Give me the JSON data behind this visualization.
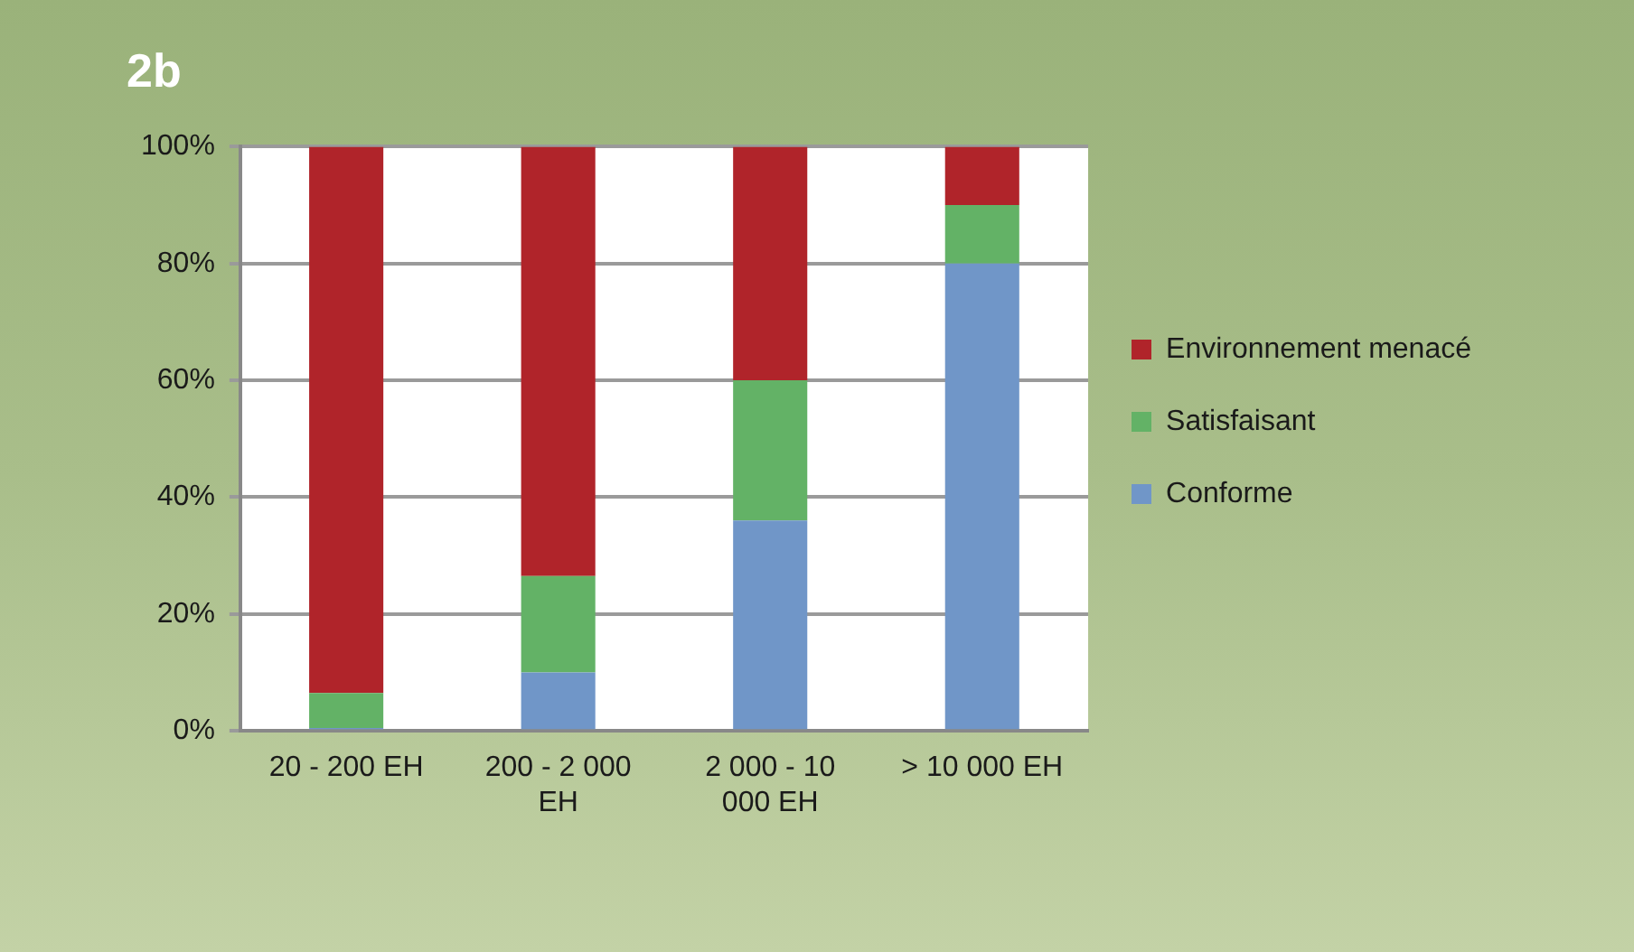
{
  "chart_data": {
    "type": "bar",
    "title": "2b",
    "stacked": true,
    "categories": [
      "20 - 200 EH",
      "200 - 2 000 EH",
      "2 000 - 10 000 EH",
      "> 10 000 EH"
    ],
    "series": [
      {
        "name": "Conforme",
        "color": "#7096c8",
        "values": [
          0.5,
          10,
          36,
          80
        ]
      },
      {
        "name": "Satisfaisant",
        "color": "#63b266",
        "values": [
          6,
          16.5,
          24,
          10
        ]
      },
      {
        "name": "Environnement menacé",
        "color": "#b0242a",
        "values": [
          93.5,
          73.5,
          40,
          10
        ]
      }
    ],
    "ylim": [
      0,
      100
    ],
    "yticks": [
      {
        "value": 0,
        "label": "0%"
      },
      {
        "value": 20,
        "label": "20%"
      },
      {
        "value": 40,
        "label": "40%"
      },
      {
        "value": 60,
        "label": "60%"
      },
      {
        "value": 80,
        "label": "80%"
      },
      {
        "value": 100,
        "label": "100%"
      }
    ],
    "grid": "y",
    "legend": "right"
  }
}
